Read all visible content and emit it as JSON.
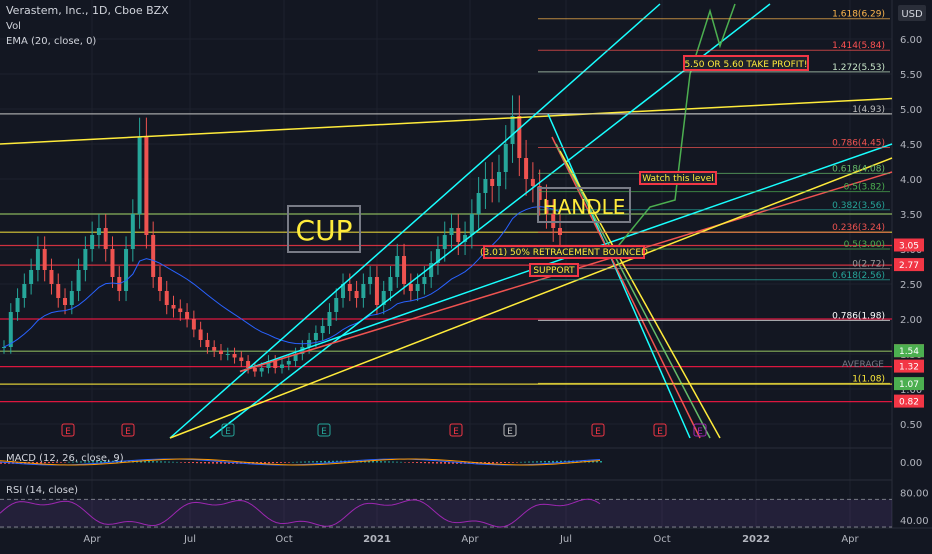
{
  "chart_data": {
    "type": "candlestick",
    "header": {
      "symbol_line": "Verastem, Inc., 1D, Cboe BZX",
      "indicator_1": "Vol",
      "indicator_2": "EMA (20, close, 0)"
    },
    "y_axis": {
      "unit": "USD",
      "range": [
        0.3,
        6.5
      ],
      "ticks": [
        "6.00",
        "5.50",
        "5.00",
        "4.50",
        "4.00",
        "3.50",
        "3.00",
        "2.50",
        "2.00",
        "1.50",
        "1.00",
        "0.50"
      ]
    },
    "x_axis": {
      "labels": [
        "Apr",
        "Jul",
        "Oct",
        "2021",
        "Apr",
        "Jul",
        "Oct",
        "2022",
        "Apr"
      ],
      "bold_labels": [
        "2021",
        "2022"
      ]
    },
    "price_badges": [
      {
        "text": "3.05",
        "value": 3.05,
        "color": "#f23645"
      },
      {
        "text": "2.77",
        "value": 2.77,
        "color": "#f23645"
      },
      {
        "text": "1.54",
        "value": 1.54,
        "color": "#f23645"
      },
      {
        "text": "1.54",
        "value": 1.54,
        "color": "#4caf50"
      },
      {
        "text": "1.32",
        "value": 1.32,
        "color": "#f23645"
      },
      {
        "text": "1.07",
        "value": 1.07,
        "color": "#4caf50"
      },
      {
        "text": "0.82",
        "value": 0.82,
        "color": "#f23645"
      }
    ],
    "fib_levels": [
      {
        "label": "1.618(6.29)",
        "value": 6.29,
        "color": "#ffb74d"
      },
      {
        "label": "1.414(5.84)",
        "value": 5.84,
        "color": "#ff5252"
      },
      {
        "label": "1.272(5.53)",
        "value": 5.53,
        "color": "#c8e6c9"
      },
      {
        "label": "1(4.93)",
        "value": 4.93,
        "color": "#bdbdbd"
      },
      {
        "label": "0.786(4.45)",
        "value": 4.45,
        "color": "#ef5350"
      },
      {
        "label": "0.618(4.08)",
        "value": 4.08,
        "color": "#66bb6a"
      },
      {
        "label": "0.5(3.82)",
        "value": 3.82,
        "color": "#4caf50"
      },
      {
        "label": "0.382(3.56)",
        "value": 3.56,
        "color": "#26a69a"
      },
      {
        "label": "0.236(3.24)",
        "value": 3.24,
        "color": "#ef5350"
      },
      {
        "label": "0.5(3.00)",
        "value": 3.0,
        "color": "#4caf50"
      },
      {
        "label": "0(2.72)",
        "value": 2.72,
        "color": "#9e9e9e"
      },
      {
        "label": "0.618(2.56)",
        "value": 2.56,
        "color": "#26a69a"
      },
      {
        "label": "0.786(1.98)",
        "value": 1.98,
        "color": "#ffffff"
      },
      {
        "label": "1(1.08)",
        "value": 1.08,
        "color": "#ffeb3b"
      }
    ],
    "horizontal_levels": [
      {
        "value": 3.05,
        "color": "#f23645"
      },
      {
        "value": 2.77,
        "color": "#f23645"
      },
      {
        "value": 3.24,
        "color": "#ffeb3b"
      },
      {
        "value": 3.5,
        "color": "#9ccc65"
      },
      {
        "value": 2.0,
        "color": "#ff1744"
      },
      {
        "value": 1.54,
        "color": "#9ccc65"
      },
      {
        "value": 1.32,
        "color": "#ff1744"
      },
      {
        "value": 1.07,
        "color": "#ffeb3b"
      },
      {
        "value": 0.82,
        "color": "#ff1744"
      },
      {
        "value": 4.93,
        "color": "#bdbdbd"
      }
    ],
    "annotations": {
      "cup": "CUP",
      "handle": "HANDLE",
      "take_profit": "5.50 OR 5.60 TAKE PROFIT!",
      "watch": "Watch this level",
      "retracement": "(3.01) 50% RETRACEMENT BOUNCED",
      "support": "SUPPORT",
      "average": "AVERAGE"
    },
    "earnings_markers": [
      {
        "letter": "E",
        "color": "#f23645"
      },
      {
        "letter": "E",
        "color": "#f23645"
      },
      {
        "letter": "E",
        "color": "#26a69a"
      },
      {
        "letter": "E",
        "color": "#26a69a"
      },
      {
        "letter": "E",
        "color": "#f23645"
      },
      {
        "letter": "E",
        "color": "#bdbdbd"
      },
      {
        "letter": "E",
        "color": "#f23645"
      },
      {
        "letter": "E",
        "color": "#f23645"
      },
      {
        "letter": "E",
        "color": "#9c27b0"
      }
    ],
    "series": [
      {
        "name": "Close (approx.)",
        "values": [
          1.6,
          2.1,
          2.3,
          2.5,
          2.7,
          3.0,
          2.7,
          2.5,
          2.3,
          2.2,
          2.4,
          2.7,
          3.0,
          3.2,
          3.3,
          3.0,
          2.6,
          2.4,
          3.0,
          3.5,
          4.6,
          3.2,
          2.6,
          2.4,
          2.2,
          2.15,
          2.1,
          2.0,
          1.85,
          1.7,
          1.6,
          1.55,
          1.5,
          1.5,
          1.45,
          1.4,
          1.3,
          1.25,
          1.3,
          1.4,
          1.3,
          1.35,
          1.4,
          1.5,
          1.6,
          1.7,
          1.8,
          1.9,
          2.1,
          2.3,
          2.5,
          2.4,
          2.3,
          2.5,
          2.6,
          2.2,
          2.4,
          2.6,
          2.9,
          2.5,
          2.4,
          2.5,
          2.6,
          2.8,
          3.0,
          3.2,
          3.3,
          3.1,
          3.2,
          3.5,
          3.8,
          4.0,
          3.9,
          4.1,
          4.5,
          4.9,
          4.3,
          4.0,
          3.9,
          3.7,
          3.5,
          3.3,
          3.2
        ]
      }
    ],
    "macd": {
      "label": "MACD (12, 26, close, 9)",
      "ticks": [
        "0.00"
      ]
    },
    "rsi": {
      "label": "RSI (14, close)",
      "ticks": [
        "80.00",
        "40.00"
      ]
    }
  }
}
